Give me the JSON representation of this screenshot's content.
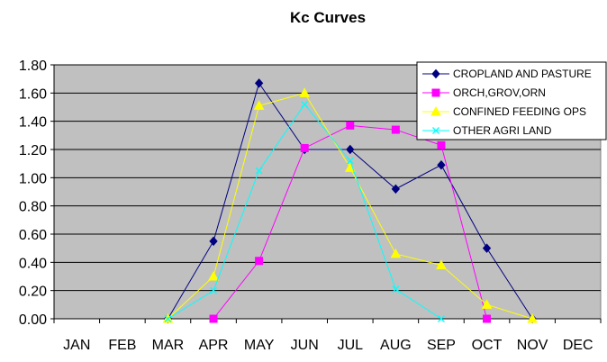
{
  "chart_data": {
    "type": "line",
    "title": "Kc Curves",
    "xlabel": "",
    "ylabel": "",
    "categories": [
      "JAN",
      "FEB",
      "MAR",
      "APR",
      "MAY",
      "JUN",
      "JUL",
      "AUG",
      "SEP",
      "OCT",
      "NOV",
      "DEC"
    ],
    "ylim": [
      0,
      1.8
    ],
    "yticks": [
      "0.00",
      "0.20",
      "0.40",
      "0.60",
      "0.80",
      "1.00",
      "1.20",
      "1.40",
      "1.60",
      "1.80"
    ],
    "grid": true,
    "legend_position": "top-right",
    "plot_background": "#c0c0c0",
    "series": [
      {
        "name": "CROPLAND AND PASTURE",
        "color": "#000080",
        "marker": "diamond",
        "values": [
          null,
          null,
          0.0,
          0.55,
          1.67,
          1.2,
          1.2,
          0.92,
          1.09,
          0.5,
          0.0,
          null
        ]
      },
      {
        "name": "ORCH,GROV,ORN",
        "color": "#ff00ff",
        "marker": "square",
        "values": [
          null,
          null,
          null,
          0.0,
          0.41,
          1.21,
          1.37,
          1.34,
          1.23,
          0.0,
          null,
          null
        ]
      },
      {
        "name": "CONFINED FEEDING OPS",
        "color": "#ffff00",
        "marker": "triangle",
        "values": [
          null,
          null,
          0.0,
          0.3,
          1.51,
          1.6,
          1.07,
          0.46,
          0.38,
          0.1,
          0.0,
          null
        ]
      },
      {
        "name": "OTHER AGRI LAND",
        "color": "#00ffff",
        "marker": "x",
        "values": [
          null,
          null,
          0.0,
          0.2,
          1.05,
          1.52,
          1.12,
          0.21,
          0.0,
          null,
          null,
          null
        ]
      }
    ]
  }
}
